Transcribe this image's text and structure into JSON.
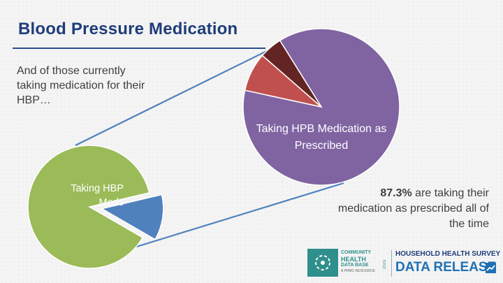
{
  "slide": {
    "title": "Blood Pressure Medication",
    "intro": "And of those currently taking medication for their HBP…",
    "stat_value": "87.3%",
    "stat_rest": " are taking their medication as prescribed all of the time"
  },
  "chart_data": [
    {
      "type": "pie",
      "title": "",
      "slices": [
        {
          "label": "Taking HBP Meds",
          "value": 88,
          "color": "#9bbb59"
        },
        {
          "label": "",
          "value": 12,
          "color": "#4f81bd",
          "exploded": true
        }
      ]
    },
    {
      "type": "pie",
      "title": "",
      "slices": [
        {
          "label": "Taking HPB Medication as Prescribed",
          "value": 87.3,
          "color": "#8064a2"
        },
        {
          "label": "",
          "value": 8.0,
          "color": "#c0504d"
        },
        {
          "label": "",
          "value": 4.7,
          "color": "#632523"
        }
      ]
    }
  ],
  "colors": {
    "title": "#1f3d7a",
    "connector": "#4f81bd"
  },
  "brand": {
    "logo_icon": "community-health-logo-icon",
    "community": "COMMUNITY",
    "health": "HEALTH",
    "database": "DATA BASE",
    "tagline": "A PHMC RESOURCE",
    "year": "2015",
    "survey": "HOUSEHOLD HEALTH SURVEY",
    "release": "DATA RELEASE",
    "release_icon": "trend-chart-icon"
  }
}
